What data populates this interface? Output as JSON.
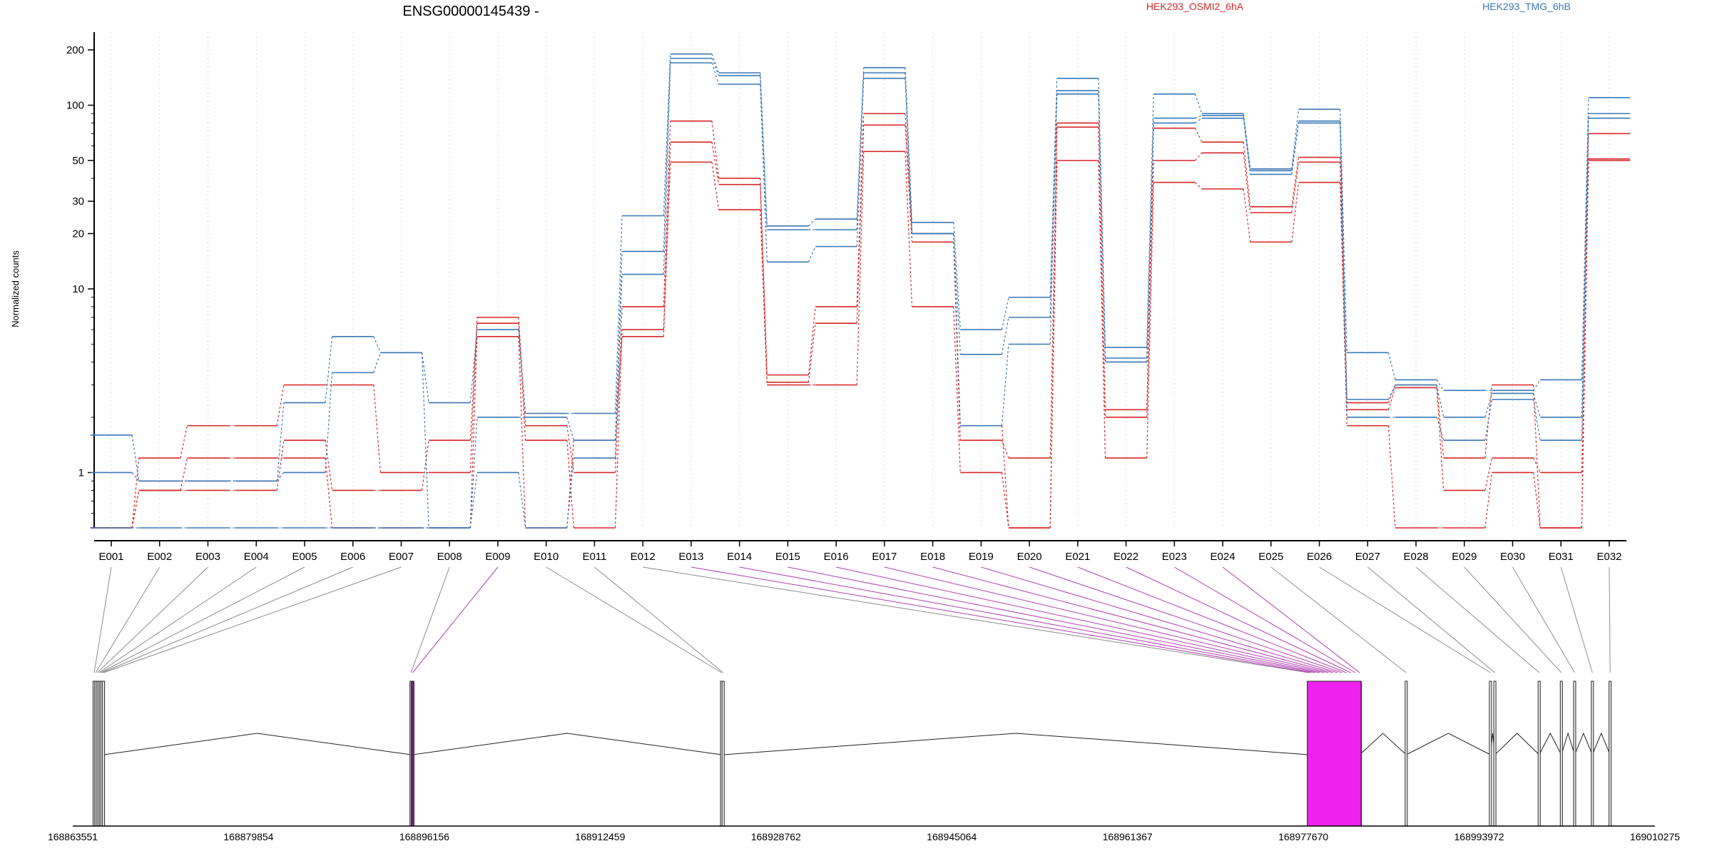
{
  "chart_data": {
    "type": "line",
    "title": "ENSG00000145439 -",
    "ylabel": "Normalized counts",
    "yscale": "log",
    "ylim": [
      0.5,
      250
    ],
    "yticks": [
      1,
      10,
      20,
      30,
      50,
      100,
      200
    ],
    "categories": [
      "E001",
      "E002",
      "E003",
      "E004",
      "E005",
      "E006",
      "E007",
      "E008",
      "E009",
      "E010",
      "E011",
      "E012",
      "E013",
      "E014",
      "E015",
      "E016",
      "E017",
      "E018",
      "E019",
      "E020",
      "E021",
      "E022",
      "E023",
      "E024",
      "E025",
      "E026",
      "E027",
      "E028",
      "E029",
      "E030",
      "E031",
      "E032"
    ],
    "legend": {
      "placement": "top",
      "entries": [
        "HEK293_OSMI2_6hA",
        "HEK293_TMG_6hB"
      ]
    },
    "colors": {
      "HEK293_OSMI2_6hA": "#d62728",
      "HEK293_TMG_6hB": "#3a78b5"
    },
    "series": [
      {
        "condition": "HEK293_OSMI2_6hA",
        "values": [
          0.5,
          1.2,
          1.8,
          1.8,
          3.0,
          3.0,
          1.0,
          1.0,
          7.0,
          1.8,
          1.0,
          8.0,
          82,
          40,
          3.4,
          8.0,
          90,
          20,
          1.8,
          0.5,
          80,
          2.2,
          75,
          63,
          28,
          52,
          2.4,
          3.0,
          1.2,
          3.0,
          0.5,
          70
        ]
      },
      {
        "condition": "HEK293_OSMI2_6hA",
        "values": [
          0.5,
          0.8,
          0.8,
          0.8,
          1.5,
          0.8,
          0.8,
          1.5,
          6.5,
          1.5,
          0.5,
          6.0,
          63,
          37,
          3.1,
          6.5,
          78,
          18,
          1.5,
          1.2,
          76,
          2.0,
          50,
          55,
          26,
          49,
          2.2,
          2.9,
          0.8,
          1.2,
          1.0,
          51
        ]
      },
      {
        "condition": "HEK293_OSMI2_6hA",
        "values": [
          0.5,
          0.8,
          1.2,
          1.2,
          1.2,
          0.5,
          0.5,
          0.5,
          5.5,
          0.5,
          1.5,
          5.5,
          49,
          27,
          3.0,
          3.0,
          56,
          8.0,
          1.0,
          0.5,
          50,
          1.2,
          38,
          35,
          18,
          38,
          1.8,
          0.5,
          0.5,
          1.0,
          0.5,
          50
        ]
      },
      {
        "condition": "HEK293_TMG_6hB",
        "values": [
          1.6,
          0.9,
          0.9,
          0.9,
          2.4,
          5.5,
          4.5,
          2.4,
          6.0,
          2.1,
          2.1,
          25,
          190,
          150,
          22,
          24,
          160,
          23,
          6.0,
          9.0,
          140,
          4.8,
          115,
          90,
          45,
          95,
          4.5,
          3.2,
          2.8,
          2.8,
          3.2,
          110
        ]
      },
      {
        "condition": "HEK293_TMG_6hB",
        "values": [
          1.0,
          0.9,
          0.9,
          0.9,
          1.0,
          3.5,
          4.5,
          0.5,
          2.0,
          2.0,
          1.5,
          16,
          180,
          145,
          21,
          21,
          150,
          20,
          4.4,
          7.0,
          120,
          4.2,
          85,
          88,
          44,
          82,
          2.5,
          3.0,
          2.0,
          2.7,
          2.0,
          90
        ]
      },
      {
        "condition": "HEK293_TMG_6hB",
        "values": [
          0.5,
          0.5,
          0.5,
          0.5,
          0.5,
          0.5,
          0.5,
          0.5,
          1.0,
          0.5,
          1.2,
          12,
          170,
          130,
          14,
          17,
          140,
          20,
          1.8,
          5.0,
          115,
          4.0,
          80,
          85,
          42,
          80,
          2.0,
          2.0,
          1.5,
          2.5,
          1.5,
          85
        ]
      }
    ],
    "gene_model": {
      "coordinate_labels": [
        "168863551",
        "168879854",
        "168896156",
        "168912459",
        "168928762",
        "168945064",
        "168961367",
        "168977670",
        "168993972",
        "169010275"
      ],
      "highlight_color": "#ee22ee",
      "highlighted_exons": [
        "E009",
        "E013",
        "E014",
        "E015",
        "E016",
        "E017",
        "E018",
        "E019",
        "E020",
        "E021",
        "E022",
        "E023",
        "E024"
      ]
    }
  }
}
